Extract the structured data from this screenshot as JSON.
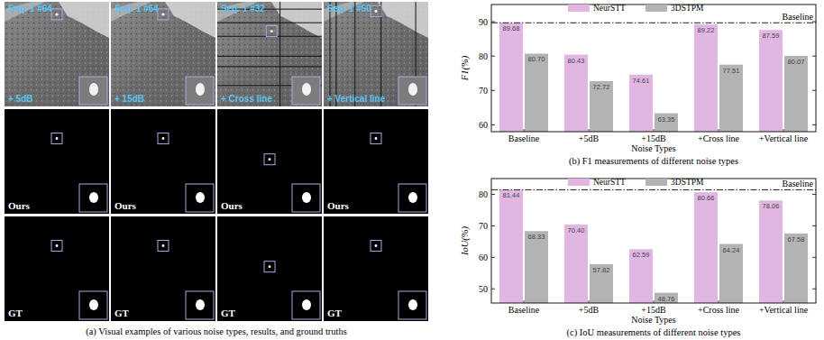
{
  "panel_a": {
    "caption": "(a) Visual examples of various noise types, results, and ground truths",
    "columns": [
      {
        "frame": "Seq. 1 #64",
        "noise": "+ 5dB",
        "result": "Ours",
        "truth": "GT"
      },
      {
        "frame": "Seq. 1 #64",
        "noise": "+ 15dB",
        "result": "Ours",
        "truth": "GT"
      },
      {
        "frame": "Seq. 1 #32",
        "noise": "+ Cross line",
        "result": "Ours",
        "truth": "GT"
      },
      {
        "frame": "Seq. 1 #50",
        "noise": "+ Vertical line",
        "result": "Ours",
        "truth": "GT"
      }
    ]
  },
  "chart_data": [
    {
      "type": "bar",
      "caption": "(b) F1 measurements of different noise types",
      "x_label": "Noise Types",
      "y_label": "F1(%)",
      "categories": [
        "Baseline",
        "+5dB",
        "+15dB",
        "+Cross line",
        "+Vertical line"
      ],
      "series": [
        {
          "name": "NeurSTT",
          "color": "#e2b6e3",
          "values": [
            89.68,
            80.43,
            74.61,
            89.22,
            87.59
          ],
          "value_labels": [
            "89.68",
            "80.43",
            "74.61",
            "89.22",
            "87.59"
          ]
        },
        {
          "name": "3DSTPM",
          "color": "#b3b3b3",
          "values": [
            80.7,
            72.72,
            63.35,
            77.51,
            80.07
          ],
          "value_labels": [
            "80.70",
            "72.72",
            "63.35",
            "77.51",
            "80.07"
          ]
        }
      ],
      "ylim": [
        58,
        95
      ],
      "yticks": [
        60,
        70,
        80,
        90
      ],
      "data_labels": true,
      "legend": "top",
      "reference_line": {
        "value": 89.68,
        "label": "Baseline"
      }
    },
    {
      "type": "bar",
      "caption": "(c) IoU measurements of different noise types",
      "x_label": "Noise Types",
      "y_label": "IoU(%)",
      "categories": [
        "Baseline",
        "+5dB",
        "+15dB",
        "+Cross line",
        "+Vertical line"
      ],
      "series": [
        {
          "name": "NeurSTT",
          "color": "#e2b6e3",
          "values": [
            81.44,
            70.4,
            62.59,
            80.66,
            78.06
          ],
          "value_labels": [
            "81.44",
            "70.40",
            "62.59",
            "80.66",
            "78.06"
          ]
        },
        {
          "name": "3DSTPM",
          "color": "#b3b3b3",
          "values": [
            68.33,
            57.82,
            48.76,
            64.24,
            67.58
          ],
          "value_labels": [
            "68.33",
            "57.82",
            "48.76",
            "64.24",
            "67.58"
          ]
        }
      ],
      "ylim": [
        45.5,
        85
      ],
      "yticks": [
        50,
        60,
        70,
        80
      ],
      "data_labels": true,
      "legend": "top",
      "reference_line": {
        "value": 81.44,
        "label": "Baseline"
      }
    }
  ]
}
